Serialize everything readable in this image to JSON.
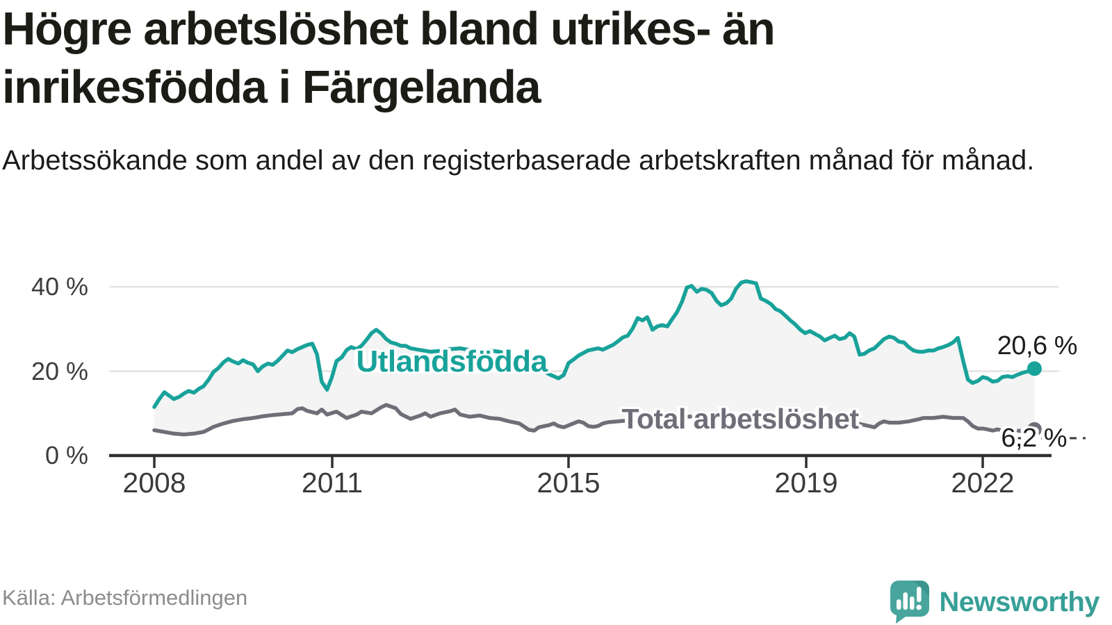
{
  "header": {
    "title": "Högre arbetslöshet bland utrikes- än inrikesfödda i Färgelanda",
    "subtitle": "Arbetssökande som andel av den registerbaserade arbetskraften månad för månad."
  },
  "footer": {
    "source": "Källa: Arbetsförmedlingen",
    "brand": "Newsworthy",
    "brand_logo_icon": "speech-bubble-bar-chart-icon"
  },
  "colors": {
    "accent_teal": "#18a29a",
    "line_gray": "#6f6e78",
    "area_fill": "#f4f4f5",
    "gridline": "#e3e3e3",
    "axis": "#2f2f2f",
    "text_dark": "#1c1c16",
    "text_muted": "#8c8c8c"
  },
  "chart_data": {
    "type": "line",
    "title": "Högre arbetslöshet bland utrikes- än inrikesfödda i Färgelanda",
    "subtitle": "Arbetssökande som andel av den registerbaserade arbetskraften månad för månad.",
    "unit": "%",
    "xlabel": "",
    "ylabel": "",
    "grid": true,
    "legend_position": "inline-labels",
    "x_axis": {
      "kind": "time-monthly",
      "range_decimal_years": [
        2008.0,
        2022.92
      ],
      "tick_labels": [
        "2008",
        "2011",
        "2015",
        "2019",
        "2022"
      ],
      "tick_years": [
        2008,
        2011,
        2015,
        2019,
        2022
      ]
    },
    "y_axis": {
      "tick_labels": [
        "0 %",
        "20 %",
        "40 %"
      ],
      "tick_values": [
        0,
        20,
        40
      ],
      "ylim": [
        0,
        44
      ]
    },
    "series": [
      {
        "name": "Utlandsfödda",
        "color": "#18a29a",
        "end_label": "20,6 %",
        "end_value": 20.6,
        "points": [
          [
            2008.0,
            11.5
          ],
          [
            2008.08,
            13.3
          ],
          [
            2008.17,
            15.0
          ],
          [
            2008.25,
            14.2
          ],
          [
            2008.33,
            13.4
          ],
          [
            2008.42,
            13.9
          ],
          [
            2008.5,
            14.7
          ],
          [
            2008.58,
            15.3
          ],
          [
            2008.67,
            14.9
          ],
          [
            2008.75,
            15.8
          ],
          [
            2008.83,
            16.4
          ],
          [
            2008.92,
            18.0
          ],
          [
            2009.0,
            19.8
          ],
          [
            2009.08,
            20.7
          ],
          [
            2009.17,
            22.1
          ],
          [
            2009.25,
            22.9
          ],
          [
            2009.33,
            22.3
          ],
          [
            2009.42,
            21.8
          ],
          [
            2009.5,
            22.6
          ],
          [
            2009.58,
            22.0
          ],
          [
            2009.67,
            21.6
          ],
          [
            2009.75,
            20.0
          ],
          [
            2009.83,
            21.1
          ],
          [
            2009.92,
            21.8
          ],
          [
            2010.0,
            21.5
          ],
          [
            2010.08,
            22.4
          ],
          [
            2010.17,
            23.7
          ],
          [
            2010.25,
            24.9
          ],
          [
            2010.33,
            24.5
          ],
          [
            2010.42,
            25.2
          ],
          [
            2010.5,
            25.7
          ],
          [
            2010.58,
            26.2
          ],
          [
            2010.67,
            26.5
          ],
          [
            2010.75,
            24.0
          ],
          [
            2010.83,
            17.5
          ],
          [
            2010.92,
            15.6
          ],
          [
            2011.0,
            18.5
          ],
          [
            2011.08,
            22.4
          ],
          [
            2011.17,
            23.3
          ],
          [
            2011.25,
            25.0
          ],
          [
            2011.33,
            25.7
          ],
          [
            2011.42,
            25.2
          ],
          [
            2011.5,
            26.0
          ],
          [
            2011.58,
            27.3
          ],
          [
            2011.67,
            29.0
          ],
          [
            2011.75,
            29.8
          ],
          [
            2011.83,
            29.0
          ],
          [
            2011.92,
            27.6
          ],
          [
            2012.0,
            26.8
          ],
          [
            2012.08,
            26.5
          ],
          [
            2012.17,
            26.0
          ],
          [
            2012.25,
            26.0
          ],
          [
            2012.33,
            25.4
          ],
          [
            2012.5,
            25.0
          ],
          [
            2012.67,
            24.6
          ],
          [
            2012.83,
            24.8
          ],
          [
            2013.0,
            25.2
          ],
          [
            2013.17,
            25.4
          ],
          [
            2013.33,
            25.0
          ],
          [
            2013.5,
            24.7
          ],
          [
            2013.67,
            24.9
          ],
          [
            2013.83,
            24.6
          ],
          [
            2014.0,
            24.0
          ],
          [
            2014.17,
            23.2
          ],
          [
            2014.33,
            22.0
          ],
          [
            2014.5,
            20.8
          ],
          [
            2014.67,
            19.3
          ],
          [
            2014.83,
            18.3
          ],
          [
            2014.92,
            19.1
          ],
          [
            2015.0,
            21.9
          ],
          [
            2015.08,
            22.7
          ],
          [
            2015.17,
            23.7
          ],
          [
            2015.33,
            24.9
          ],
          [
            2015.5,
            25.4
          ],
          [
            2015.58,
            25.1
          ],
          [
            2015.75,
            26.2
          ],
          [
            2015.83,
            27.0
          ],
          [
            2015.92,
            28.0
          ],
          [
            2016.0,
            28.4
          ],
          [
            2016.08,
            30.0
          ],
          [
            2016.17,
            32.6
          ],
          [
            2016.25,
            32.0
          ],
          [
            2016.33,
            32.8
          ],
          [
            2016.42,
            29.8
          ],
          [
            2016.5,
            30.6
          ],
          [
            2016.58,
            30.9
          ],
          [
            2016.67,
            30.6
          ],
          [
            2016.75,
            32.3
          ],
          [
            2016.83,
            33.9
          ],
          [
            2016.92,
            36.5
          ],
          [
            2017.0,
            39.8
          ],
          [
            2017.08,
            40.2
          ],
          [
            2017.17,
            38.8
          ],
          [
            2017.25,
            39.5
          ],
          [
            2017.33,
            39.3
          ],
          [
            2017.42,
            38.5
          ],
          [
            2017.5,
            36.7
          ],
          [
            2017.58,
            35.6
          ],
          [
            2017.67,
            36.1
          ],
          [
            2017.75,
            37.2
          ],
          [
            2017.83,
            39.5
          ],
          [
            2017.92,
            41.0
          ],
          [
            2018.0,
            41.3
          ],
          [
            2018.08,
            41.1
          ],
          [
            2018.17,
            40.8
          ],
          [
            2018.25,
            37.2
          ],
          [
            2018.33,
            36.7
          ],
          [
            2018.42,
            35.9
          ],
          [
            2018.5,
            34.7
          ],
          [
            2018.58,
            34.2
          ],
          [
            2018.67,
            33.1
          ],
          [
            2018.75,
            32.0
          ],
          [
            2018.83,
            31.1
          ],
          [
            2018.92,
            29.8
          ],
          [
            2019.0,
            29.0
          ],
          [
            2019.08,
            29.5
          ],
          [
            2019.17,
            28.8
          ],
          [
            2019.25,
            28.2
          ],
          [
            2019.33,
            27.3
          ],
          [
            2019.42,
            27.9
          ],
          [
            2019.5,
            28.4
          ],
          [
            2019.58,
            27.6
          ],
          [
            2019.67,
            27.9
          ],
          [
            2019.75,
            29.0
          ],
          [
            2019.83,
            28.2
          ],
          [
            2019.92,
            23.9
          ],
          [
            2020.0,
            24.1
          ],
          [
            2020.08,
            24.9
          ],
          [
            2020.17,
            25.4
          ],
          [
            2020.25,
            26.5
          ],
          [
            2020.33,
            27.6
          ],
          [
            2020.42,
            28.2
          ],
          [
            2020.5,
            27.9
          ],
          [
            2020.58,
            27.0
          ],
          [
            2020.67,
            26.8
          ],
          [
            2020.75,
            25.7
          ],
          [
            2020.83,
            24.9
          ],
          [
            2020.92,
            24.6
          ],
          [
            2021.0,
            24.6
          ],
          [
            2021.08,
            24.9
          ],
          [
            2021.17,
            24.9
          ],
          [
            2021.25,
            25.4
          ],
          [
            2021.33,
            25.7
          ],
          [
            2021.42,
            26.2
          ],
          [
            2021.5,
            26.8
          ],
          [
            2021.58,
            27.9
          ],
          [
            2021.67,
            22.4
          ],
          [
            2021.75,
            18.0
          ],
          [
            2021.83,
            17.2
          ],
          [
            2021.92,
            17.7
          ],
          [
            2022.0,
            18.6
          ],
          [
            2022.08,
            18.3
          ],
          [
            2022.17,
            17.5
          ],
          [
            2022.25,
            17.7
          ],
          [
            2022.33,
            18.6
          ],
          [
            2022.42,
            18.8
          ],
          [
            2022.5,
            18.6
          ],
          [
            2022.58,
            19.1
          ],
          [
            2022.67,
            19.6
          ],
          [
            2022.75,
            19.9
          ],
          [
            2022.875,
            20.6
          ]
        ]
      },
      {
        "name": "Total arbetslöshet",
        "color": "#6f6e78",
        "end_label": "6,2 %",
        "end_value": 6.2,
        "points": [
          [
            2008.0,
            6.0
          ],
          [
            2008.17,
            5.6
          ],
          [
            2008.33,
            5.2
          ],
          [
            2008.5,
            5.0
          ],
          [
            2008.67,
            5.2
          ],
          [
            2008.83,
            5.6
          ],
          [
            2008.92,
            6.2
          ],
          [
            2009.0,
            6.8
          ],
          [
            2009.17,
            7.6
          ],
          [
            2009.33,
            8.2
          ],
          [
            2009.5,
            8.6
          ],
          [
            2009.67,
            8.9
          ],
          [
            2009.83,
            9.3
          ],
          [
            2010.0,
            9.6
          ],
          [
            2010.17,
            9.8
          ],
          [
            2010.33,
            10.0
          ],
          [
            2010.42,
            11.0
          ],
          [
            2010.5,
            11.2
          ],
          [
            2010.58,
            10.6
          ],
          [
            2010.75,
            10.0
          ],
          [
            2010.83,
            10.9
          ],
          [
            2010.92,
            9.7
          ],
          [
            2011.08,
            10.4
          ],
          [
            2011.25,
            8.9
          ],
          [
            2011.42,
            9.7
          ],
          [
            2011.5,
            10.4
          ],
          [
            2011.67,
            10.0
          ],
          [
            2011.83,
            11.4
          ],
          [
            2011.92,
            12.0
          ],
          [
            2012.08,
            11.2
          ],
          [
            2012.17,
            9.8
          ],
          [
            2012.33,
            8.7
          ],
          [
            2012.5,
            9.5
          ],
          [
            2012.58,
            10.0
          ],
          [
            2012.67,
            9.2
          ],
          [
            2012.83,
            10.0
          ],
          [
            2013.0,
            10.5
          ],
          [
            2013.08,
            10.9
          ],
          [
            2013.17,
            9.7
          ],
          [
            2013.33,
            9.2
          ],
          [
            2013.5,
            9.5
          ],
          [
            2013.67,
            8.9
          ],
          [
            2013.83,
            8.7
          ],
          [
            2014.0,
            8.1
          ],
          [
            2014.17,
            7.6
          ],
          [
            2014.33,
            6.1
          ],
          [
            2014.42,
            5.9
          ],
          [
            2014.5,
            6.7
          ],
          [
            2014.67,
            7.2
          ],
          [
            2014.75,
            7.6
          ],
          [
            2014.83,
            7.0
          ],
          [
            2014.92,
            6.7
          ],
          [
            2015.08,
            7.6
          ],
          [
            2015.17,
            8.1
          ],
          [
            2015.25,
            7.8
          ],
          [
            2015.33,
            7.0
          ],
          [
            2015.42,
            6.8
          ],
          [
            2015.5,
            7.0
          ],
          [
            2015.58,
            7.6
          ],
          [
            2015.67,
            7.9
          ],
          [
            2015.75,
            8.0
          ],
          [
            2016.0,
            8.3
          ],
          [
            2016.25,
            8.6
          ],
          [
            2016.5,
            8.5
          ],
          [
            2016.75,
            8.8
          ],
          [
            2017.0,
            9.2
          ],
          [
            2017.25,
            9.4
          ],
          [
            2017.5,
            9.3
          ],
          [
            2017.75,
            9.5
          ],
          [
            2017.92,
            9.6
          ],
          [
            2018.25,
            9.3
          ],
          [
            2018.5,
            9.0
          ],
          [
            2018.75,
            8.8
          ],
          [
            2019.0,
            8.6
          ],
          [
            2019.25,
            8.3
          ],
          [
            2019.5,
            8.0
          ],
          [
            2019.75,
            7.8
          ],
          [
            2019.92,
            7.5
          ],
          [
            2020.08,
            7.0
          ],
          [
            2020.17,
            6.7
          ],
          [
            2020.25,
            7.6
          ],
          [
            2020.33,
            8.1
          ],
          [
            2020.42,
            7.8
          ],
          [
            2020.58,
            7.8
          ],
          [
            2020.75,
            8.1
          ],
          [
            2020.92,
            8.6
          ],
          [
            2021.0,
            8.9
          ],
          [
            2021.17,
            8.9
          ],
          [
            2021.33,
            9.2
          ],
          [
            2021.5,
            8.9
          ],
          [
            2021.67,
            8.9
          ],
          [
            2021.75,
            8.1
          ],
          [
            2021.83,
            7.0
          ],
          [
            2021.92,
            6.4
          ],
          [
            2022.0,
            6.4
          ],
          [
            2022.08,
            6.2
          ],
          [
            2022.17,
            5.9
          ],
          [
            2022.25,
            6.2
          ],
          [
            2022.33,
            5.9
          ],
          [
            2022.42,
            5.8
          ],
          [
            2022.5,
            5.6
          ],
          [
            2022.58,
            5.9
          ],
          [
            2022.67,
            5.8
          ],
          [
            2022.75,
            6.0
          ],
          [
            2022.875,
            6.2
          ]
        ]
      }
    ]
  }
}
